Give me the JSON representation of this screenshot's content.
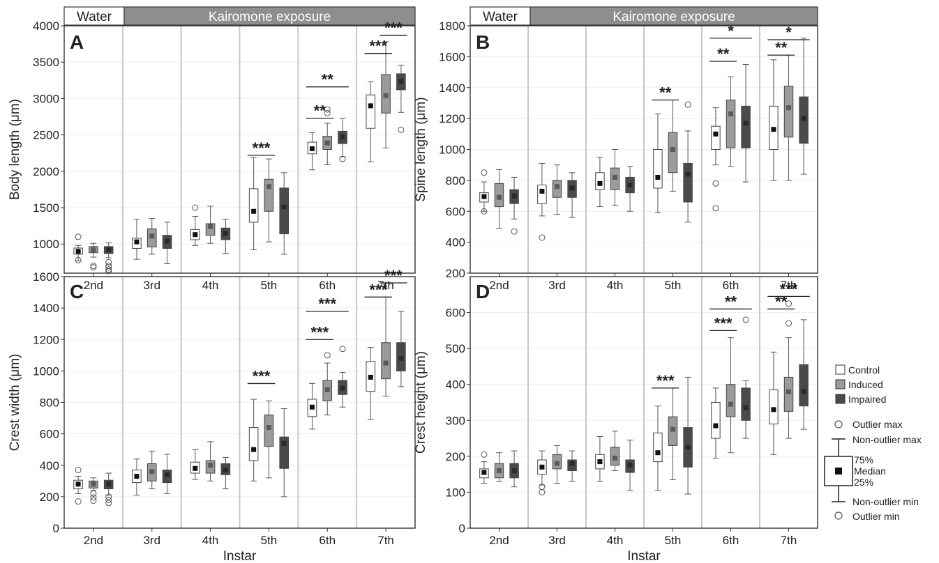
{
  "chart_data": {
    "type": "box",
    "group_labels": {
      "water": "Water",
      "kairomone": "Kairomone exposure"
    },
    "x": {
      "label": "Instar",
      "categories": [
        "2nd",
        "3rd",
        "4th",
        "5th",
        "6th",
        "7th"
      ]
    },
    "treatments": [
      {
        "name": "Control",
        "color": "#ffffff"
      },
      {
        "name": "Induced",
        "color": "#9b9b9b"
      },
      {
        "name": "Impaired",
        "color": "#4a4a4a"
      }
    ],
    "legend": {
      "outlier_max": "Outlier max",
      "nonoutlier_max": "Non-outlier max",
      "q3": "75%",
      "median": "Median",
      "q1": "25%",
      "nonoutlier_min": "Non-outlier min",
      "outlier_min": "Outlier min"
    },
    "panels": [
      {
        "letter": "A",
        "ylabel": "Body length (μm)",
        "ylim": [
          600,
          4000
        ],
        "yticks": [
          1000,
          1500,
          2000,
          2500,
          3000,
          3500,
          4000
        ],
        "boxes": [
          [
            [
              770,
              860,
              900,
              945,
              980,
              [
                1100
              ],
              [
                780
              ]
            ],
            [
              820,
              880,
              920,
              965,
              1010,
              [],
              [
                700,
                680
              ]
            ],
            [
              810,
              870,
              920,
              965,
              1020,
              [],
              [
                750,
                700,
                680,
                650,
                630
              ]
            ]
          ],
          [
            [
              790,
              940,
              1030,
              1080,
              1340,
              [],
              []
            ],
            [
              860,
              960,
              1110,
              1210,
              1350,
              [],
              []
            ],
            [
              730,
              940,
              1040,
              1120,
              1300,
              [],
              []
            ]
          ],
          [
            [
              980,
              1060,
              1130,
              1200,
              1380,
              [
                1500
              ],
              []
            ],
            [
              1010,
              1120,
              1240,
              1280,
              1520,
              [],
              []
            ],
            [
              870,
              1060,
              1150,
              1220,
              1340,
              [],
              []
            ]
          ],
          [
            [
              920,
              1300,
              1450,
              1760,
              2190,
              [],
              []
            ],
            [
              1030,
              1450,
              1790,
              1890,
              2170,
              [],
              []
            ],
            [
              860,
              1140,
              1510,
              1770,
              1980,
              [],
              []
            ]
          ],
          [
            [
              2020,
              2240,
              2310,
              2400,
              2530,
              [],
              []
            ],
            [
              2090,
              2300,
              2390,
              2480,
              2660,
              [
                2850,
                2800
              ],
              []
            ],
            [
              2200,
              2380,
              2470,
              2550,
              2730,
              [],
              [
                2170
              ]
            ]
          ],
          [
            [
              2130,
              2590,
              2900,
              3050,
              3230,
              [],
              []
            ],
            [
              2320,
              2800,
              3040,
              3330,
              3780,
              [],
              []
            ],
            [
              2810,
              3120,
              3240,
              3340,
              3460,
              [],
              [
                2570
              ]
            ]
          ]
        ],
        "sig": [
          {
            "instar": 3,
            "from": 0,
            "to": 1,
            "text": "***",
            "y": 2220,
            "row": 0
          },
          {
            "instar": 4,
            "from": 0,
            "to": 1,
            "text": "**",
            "y": 2730,
            "row": 0
          },
          {
            "instar": 4,
            "from": 0,
            "to": 2,
            "text": "**",
            "y": 3160,
            "row": 1
          },
          {
            "instar": 5,
            "from": 0,
            "to": 1,
            "text": "***",
            "y": 3620,
            "row": 0
          },
          {
            "instar": 5,
            "from": 1,
            "to": 2,
            "text": "***",
            "y": 3870,
            "row": 1
          }
        ]
      },
      {
        "letter": "B",
        "ylabel": "Spine length (μm)",
        "ylim": [
          200,
          1800
        ],
        "yticks": [
          200,
          400,
          600,
          800,
          1000,
          1200,
          1400,
          1600,
          1800
        ],
        "boxes": [
          [
            [
              600,
              660,
              695,
              720,
              790,
              [
                850
              ],
              [
                600
              ]
            ],
            [
              490,
              630,
              690,
              780,
              870,
              [],
              []
            ],
            [
              550,
              650,
              700,
              740,
              820,
              [],
              [
                470
              ]
            ]
          ],
          [
            [
              570,
              650,
              730,
              770,
              910,
              [],
              [
                430
              ]
            ],
            [
              580,
              690,
              760,
              800,
              900,
              [],
              []
            ],
            [
              560,
              690,
              750,
              800,
              850,
              [],
              []
            ]
          ],
          [
            [
              630,
              740,
              780,
              850,
              950,
              [],
              []
            ],
            [
              640,
              740,
              820,
              880,
              1000,
              [],
              []
            ],
            [
              600,
              720,
              770,
              820,
              890,
              [],
              []
            ]
          ],
          [
            [
              590,
              750,
              820,
              1000,
              1230,
              [],
              []
            ],
            [
              730,
              850,
              1000,
              1110,
              1320,
              [],
              []
            ],
            [
              530,
              660,
              840,
              910,
              1120,
              [
                1290
              ],
              []
            ]
          ],
          [
            [
              900,
              1000,
              1100,
              1150,
              1270,
              [],
              [
                780,
                620
              ]
            ],
            [
              890,
              1010,
              1230,
              1320,
              1470,
              [],
              []
            ],
            [
              790,
              1010,
              1170,
              1280,
              1550,
              [],
              []
            ]
          ],
          [
            [
              800,
              1000,
              1130,
              1280,
              1580,
              [],
              []
            ],
            [
              800,
              1080,
              1270,
              1410,
              1610,
              [],
              []
            ],
            [
              840,
              1040,
              1200,
              1340,
              1720,
              [],
              []
            ]
          ]
        ],
        "sig": [
          {
            "instar": 3,
            "from": 0,
            "to": 1,
            "text": "**",
            "y": 1320,
            "row": 0
          },
          {
            "instar": 4,
            "from": 0,
            "to": 1,
            "text": "**",
            "y": 1570,
            "row": 0
          },
          {
            "instar": 4,
            "from": 0,
            "to": 2,
            "text": "*",
            "y": 1720,
            "row": 1
          },
          {
            "instar": 5,
            "from": 0,
            "to": 1,
            "text": "**",
            "y": 1610,
            "row": 0
          },
          {
            "instar": 5,
            "from": 0,
            "to": 2,
            "text": "*",
            "y": 1710,
            "row": 1
          }
        ]
      },
      {
        "letter": "C",
        "ylabel": "Crest width (μm)",
        "ylim": [
          0,
          1600
        ],
        "yticks": [
          0,
          200,
          400,
          600,
          800,
          1000,
          1200,
          1400,
          1600
        ],
        "boxes": [
          [
            [
              220,
              250,
              280,
              305,
              330,
              [
                370
              ],
              [
                170
              ]
            ],
            [
              240,
              255,
              280,
              300,
              320,
              [],
              [
                220,
                195,
                175
              ]
            ],
            [
              210,
              250,
              280,
              305,
              350,
              [],
              [
                200,
                180,
                160
              ]
            ]
          ],
          [
            [
              210,
              290,
              330,
              370,
              440,
              [],
              []
            ],
            [
              250,
              300,
              360,
              410,
              490,
              [],
              []
            ],
            [
              220,
              290,
              340,
              370,
              470,
              [],
              []
            ]
          ],
          [
            [
              310,
              350,
              380,
              420,
              500,
              [],
              []
            ],
            [
              300,
              350,
              400,
              430,
              550,
              [],
              []
            ],
            [
              250,
              340,
              370,
              410,
              450,
              [],
              []
            ]
          ],
          [
            [
              300,
              430,
              500,
              640,
              820,
              [],
              []
            ],
            [
              320,
              520,
              640,
              720,
              810,
              [],
              []
            ],
            [
              200,
              380,
              540,
              580,
              760,
              [],
              []
            ]
          ],
          [
            [
              630,
              710,
              770,
              820,
              920,
              [],
              []
            ],
            [
              720,
              810,
              880,
              940,
              1050,
              [
                1100
              ],
              []
            ],
            [
              770,
              850,
              890,
              940,
              990,
              [
                1140
              ],
              []
            ]
          ],
          [
            [
              690,
              870,
              960,
              1060,
              1150,
              [],
              []
            ],
            [
              840,
              950,
              1050,
              1180,
              1470,
              [],
              []
            ],
            [
              900,
              1000,
              1080,
              1180,
              1380,
              [],
              []
            ]
          ]
        ],
        "sig": [
          {
            "instar": 3,
            "from": 0,
            "to": 1,
            "text": "***",
            "y": 920,
            "row": 0
          },
          {
            "instar": 4,
            "from": 0,
            "to": 1,
            "text": "***",
            "y": 1200,
            "row": 0
          },
          {
            "instar": 4,
            "from": 0,
            "to": 2,
            "text": "***",
            "y": 1380,
            "row": 1
          },
          {
            "instar": 5,
            "from": 0,
            "to": 1,
            "text": "***",
            "y": 1470,
            "row": 0
          },
          {
            "instar": 5,
            "from": 1,
            "to": 2,
            "text": "***",
            "y": 1560,
            "row": 1
          }
        ]
      },
      {
        "letter": "D",
        "ylabel": "Crest height (μm)",
        "ylim": [
          0,
          700
        ],
        "yticks": [
          0,
          100,
          200,
          300,
          400,
          500,
          600
        ],
        "boxes": [
          [
            [
              125,
              140,
              155,
              165,
              185,
              [
                205
              ],
              []
            ],
            [
              130,
              140,
              160,
              180,
              210,
              [],
              []
            ],
            [
              115,
              140,
              160,
              180,
              215,
              [],
              []
            ]
          ],
          [
            [
              120,
              150,
              170,
              190,
              215,
              [],
              [
                115,
                100
              ]
            ],
            [
              125,
              165,
              180,
              205,
              230,
              [],
              []
            ],
            [
              130,
              160,
              180,
              190,
              215,
              [],
              []
            ]
          ],
          [
            [
              130,
              165,
              185,
              205,
              255,
              [],
              []
            ],
            [
              160,
              175,
              195,
              225,
              270,
              [],
              []
            ],
            [
              105,
              155,
              175,
              190,
              245,
              [],
              []
            ]
          ],
          [
            [
              105,
              185,
              210,
              265,
              340,
              [],
              []
            ],
            [
              135,
              230,
              275,
              310,
              390,
              [],
              []
            ],
            [
              95,
              170,
              225,
              280,
              420,
              [],
              []
            ]
          ],
          [
            [
              195,
              250,
              285,
              350,
              390,
              [],
              []
            ],
            [
              210,
              310,
              345,
              400,
              530,
              [],
              []
            ],
            [
              250,
              300,
              335,
              390,
              410,
              [
                580
              ],
              []
            ]
          ],
          [
            [
              205,
              290,
              330,
              385,
              490,
              [],
              []
            ],
            [
              250,
              325,
              380,
              420,
              530,
              [
                625,
                570
              ],
              []
            ],
            [
              275,
              340,
              380,
              455,
              580,
              [],
              []
            ]
          ]
        ],
        "sig": [
          {
            "instar": 3,
            "from": 0,
            "to": 1,
            "text": "***",
            "y": 390,
            "row": 0
          },
          {
            "instar": 4,
            "from": 0,
            "to": 1,
            "text": "***",
            "y": 550,
            "row": 0
          },
          {
            "instar": 4,
            "from": 0,
            "to": 2,
            "text": "**",
            "y": 610,
            "row": 1
          },
          {
            "instar": 5,
            "from": 0,
            "to": 1,
            "text": "**",
            "y": 610,
            "row": 0
          },
          {
            "instar": 5,
            "from": 0,
            "to": 2,
            "text": "***",
            "y": 645,
            "row": 1
          }
        ]
      }
    ]
  }
}
